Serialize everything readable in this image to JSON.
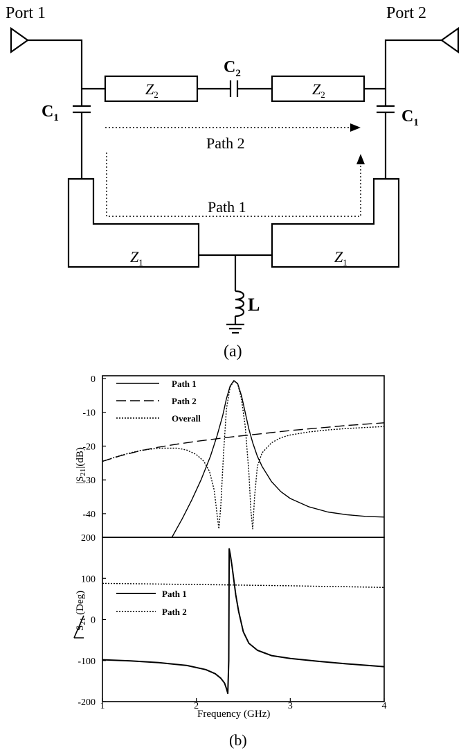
{
  "circuit": {
    "port1_label": "Port 1",
    "port2_label": "Port 2",
    "c1_main": "C",
    "c1_sub": "1",
    "c2_main": "C",
    "c2_sub": "2",
    "z1_main": "Z",
    "z1_sub": "1",
    "z2_main": "Z",
    "z2_sub": "2",
    "inductor_label": "L",
    "path1_label": "Path 1",
    "path2_label": "Path 2",
    "caption": "(a)"
  },
  "plots": {
    "caption": "(b)",
    "xlabel": "Frequency (GHz)"
  },
  "chart_data": [
    {
      "type": "line",
      "title": "",
      "xlabel": "Frequency (GHz)",
      "ylabel": "|S21|(dB)",
      "ylabel_main": "|S",
      "ylabel_sub": "21",
      "ylabel_end": "|(dB)",
      "xlim": [
        1,
        4
      ],
      "ylim": [
        -47,
        0
      ],
      "y_ticks": [
        0,
        -10,
        -20,
        -30,
        -40
      ],
      "legend_position": "top-left",
      "series": [
        {
          "name": "Path 1",
          "style": "solid",
          "x": [
            1.74,
            1.85,
            1.95,
            2.05,
            2.15,
            2.22,
            2.28,
            2.32,
            2.36,
            2.4,
            2.44,
            2.48,
            2.52,
            2.56,
            2.6,
            2.65,
            2.7,
            2.8,
            2.9,
            3.0,
            3.2,
            3.4,
            3.6,
            3.8,
            4.0
          ],
          "y": [
            -47,
            -41.5,
            -36,
            -30,
            -23,
            -17,
            -11,
            -6,
            -2.2,
            -0.6,
            -1.5,
            -5,
            -10,
            -15,
            -19,
            -23,
            -26,
            -30.5,
            -33.5,
            -35.5,
            -38,
            -39.5,
            -40.3,
            -40.8,
            -41
          ]
        },
        {
          "name": "Path 2",
          "style": "dashed",
          "x": [
            1.0,
            1.2,
            1.4,
            1.6,
            1.8,
            2.0,
            2.2,
            2.4,
            2.6,
            2.8,
            3.0,
            3.2,
            3.4,
            3.6,
            3.8,
            4.0
          ],
          "y": [
            -24.5,
            -22.8,
            -21.4,
            -20.3,
            -19.4,
            -18.6,
            -17.9,
            -17.2,
            -16.6,
            -16.0,
            -15.4,
            -14.9,
            -14.4,
            -13.9,
            -13.5,
            -13.1
          ]
        },
        {
          "name": "Overall",
          "style": "dotted",
          "x": [
            1.0,
            1.2,
            1.4,
            1.6,
            1.8,
            1.9,
            2.0,
            2.08,
            2.14,
            2.19,
            2.22,
            2.24,
            2.26,
            2.29,
            2.32,
            2.36,
            2.4,
            2.44,
            2.48,
            2.52,
            2.56,
            2.58,
            2.6,
            2.62,
            2.65,
            2.7,
            2.8,
            2.9,
            3.0,
            3.2,
            3.4,
            3.6,
            3.8,
            4.0
          ],
          "y": [
            -24.5,
            -22.7,
            -21.3,
            -20.6,
            -20.6,
            -21.2,
            -22.5,
            -24.5,
            -27.5,
            -33,
            -40,
            -44.5,
            -38,
            -22,
            -9,
            -2.5,
            -0.7,
            -1.6,
            -6,
            -14,
            -28,
            -39,
            -44.5,
            -35,
            -26,
            -22,
            -19,
            -17.5,
            -16.7,
            -15.8,
            -15.2,
            -14.8,
            -14.5,
            -14.2
          ]
        }
      ]
    },
    {
      "type": "line",
      "title": "",
      "xlabel": "Frequency (GHz)",
      "ylabel": "∠S21 (Deg)",
      "ylabel_main": "S",
      "ylabel_sub": "21",
      "ylabel_end": " (Deg)",
      "xlim": [
        1,
        4
      ],
      "ylim": [
        -200,
        200
      ],
      "y_ticks": [
        200,
        100,
        0,
        -100,
        -200
      ],
      "x_ticks": [
        1,
        2,
        3,
        4
      ],
      "legend_position": "center-left",
      "series": [
        {
          "name": "Path 1",
          "style": "solid",
          "x": [
            1.0,
            1.3,
            1.6,
            1.9,
            2.1,
            2.2,
            2.26,
            2.3,
            2.32,
            2.335,
            2.345,
            2.35,
            2.36,
            2.38,
            2.4,
            2.42,
            2.45,
            2.5,
            2.56,
            2.65,
            2.8,
            3.0,
            3.3,
            3.6,
            4.0
          ],
          "y": [
            -98,
            -101,
            -105,
            -112,
            -122,
            -132,
            -143,
            -155,
            -168,
            -180,
            -100,
            172,
            160,
            130,
            95,
            60,
            20,
            -30,
            -58,
            -75,
            -88,
            -95,
            -102,
            -108,
            -115
          ]
        },
        {
          "name": "Path 2",
          "style": "dotted",
          "x": [
            1.0,
            1.5,
            2.0,
            2.5,
            3.0,
            3.5,
            4.0
          ],
          "y": [
            88,
            86.5,
            85,
            83.5,
            82,
            80,
            78
          ]
        }
      ]
    }
  ]
}
